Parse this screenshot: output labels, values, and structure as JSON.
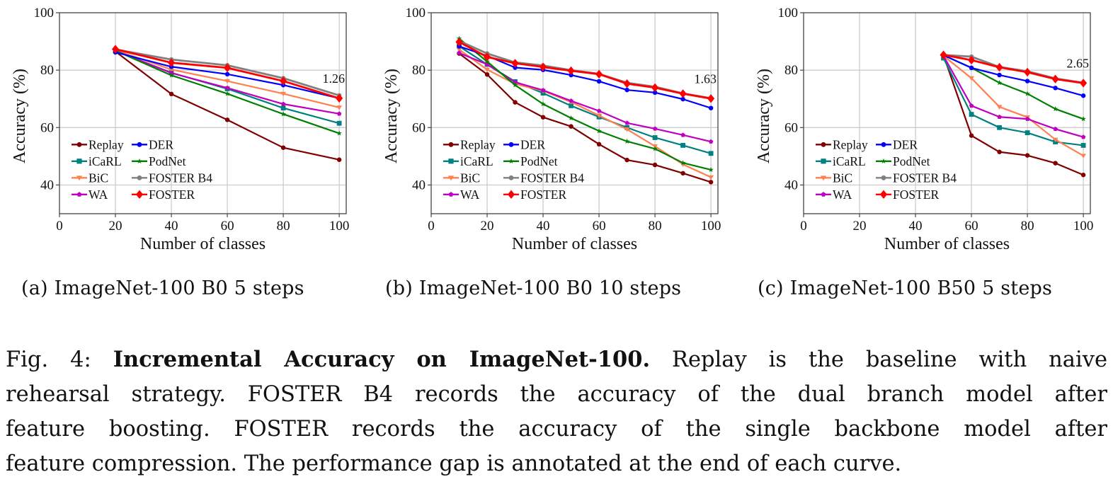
{
  "chart_data": [
    {
      "type": "line",
      "id": "a",
      "subcaption_label": "(a)",
      "subcaption": "ImageNet-100 B0 5 steps",
      "xlabel": "Number of classes",
      "ylabel": "Accuracy (%)",
      "xlim": [
        0,
        102.5
      ],
      "ylim": [
        30,
        100
      ],
      "xticks": [
        "0",
        "20",
        "40",
        "60",
        "80",
        "100"
      ],
      "yticks": [
        "40",
        "60",
        "80",
        "100"
      ],
      "grid": true,
      "legend_position": "lower-left",
      "annotation": "1.26",
      "x": [
        20,
        40,
        60,
        80,
        100
      ],
      "series": [
        {
          "name": "Replay",
          "color": "#800000",
          "marker": "circle",
          "values": [
            86.5,
            71.7,
            62.7,
            53.0,
            48.8
          ]
        },
        {
          "name": "iCaRL",
          "color": "#008080",
          "marker": "square",
          "values": [
            86.7,
            79.1,
            73.5,
            66.8,
            61.5
          ]
        },
        {
          "name": "BiC",
          "color": "#ff7f50",
          "marker": "triangle-down",
          "values": [
            87.0,
            80.2,
            76.2,
            71.8,
            67.0
          ]
        },
        {
          "name": "WA",
          "color": "#c000c0",
          "marker": "pentagon",
          "values": [
            86.8,
            79.0,
            73.8,
            68.2,
            64.8
          ]
        },
        {
          "name": "DER",
          "color": "#0000ff",
          "marker": "circle",
          "values": [
            86.2,
            81.2,
            78.6,
            74.8,
            70.2
          ]
        },
        {
          "name": "PodNet",
          "color": "#008000",
          "marker": "star",
          "values": [
            86.8,
            78.2,
            71.8,
            64.7,
            58.0
          ]
        },
        {
          "name": "FOSTER B4",
          "color": "#808080",
          "marker": "circle",
          "values": [
            87.2,
            83.7,
            81.7,
            77.2,
            71.2
          ]
        },
        {
          "name": "FOSTER",
          "color": "#ff0000",
          "marker": "diamond",
          "values": [
            87.3,
            82.6,
            80.8,
            76.2,
            70.2
          ]
        }
      ]
    },
    {
      "type": "line",
      "id": "b",
      "subcaption_label": "(b)",
      "subcaption": "ImageNet-100 B0 10 steps",
      "xlabel": "Number of classes",
      "ylabel": "Accuracy (%)",
      "xlim": [
        0,
        102.5
      ],
      "ylim": [
        30,
        100
      ],
      "xticks": [
        "0",
        "20",
        "40",
        "60",
        "80",
        "100"
      ],
      "yticks": [
        "40",
        "60",
        "80",
        "100"
      ],
      "grid": true,
      "legend_position": "lower-left",
      "annotation": "1.63",
      "x": [
        10,
        20,
        30,
        40,
        50,
        60,
        70,
        80,
        90,
        100
      ],
      "series": [
        {
          "name": "Replay",
          "color": "#800000",
          "marker": "circle",
          "values": [
            85.8,
            78.5,
            68.8,
            63.6,
            60.4,
            54.2,
            48.7,
            47.0,
            44.1,
            41.0
          ]
        },
        {
          "name": "iCaRL",
          "color": "#008080",
          "marker": "square",
          "values": [
            88.3,
            82.0,
            76.0,
            72.0,
            67.6,
            63.7,
            60.0,
            56.5,
            53.8,
            51.0
          ]
        },
        {
          "name": "BiC",
          "color": "#ff7f50",
          "marker": "triangle-down",
          "values": [
            87.2,
            80.2,
            75.2,
            72.8,
            68.9,
            64.2,
            59.4,
            53.5,
            47.2,
            42.7
          ]
        },
        {
          "name": "WA",
          "color": "#c000c0",
          "marker": "pentagon",
          "values": [
            86.0,
            82.0,
            75.8,
            73.0,
            69.3,
            65.8,
            61.6,
            59.6,
            57.4,
            55.1
          ]
        },
        {
          "name": "DER",
          "color": "#0000ff",
          "marker": "circle",
          "values": [
            88.3,
            85.0,
            80.9,
            80.1,
            78.3,
            76.1,
            73.1,
            72.2,
            69.9,
            66.8
          ]
        },
        {
          "name": "PodNet",
          "color": "#008000",
          "marker": "star",
          "values": [
            91.0,
            83.0,
            74.8,
            68.2,
            63.3,
            58.8,
            55.2,
            52.6,
            47.7,
            45.3
          ]
        },
        {
          "name": "FOSTER B4",
          "color": "#808080",
          "marker": "circle",
          "values": [
            90.2,
            85.8,
            82.7,
            81.6,
            80.0,
            78.7,
            75.6,
            74.2,
            71.9,
            70.2
          ]
        },
        {
          "name": "FOSTER",
          "color": "#ff0000",
          "marker": "diamond",
          "values": [
            89.8,
            84.6,
            82.4,
            81.1,
            79.8,
            78.6,
            75.3,
            73.9,
            71.8,
            70.1
          ]
        }
      ]
    },
    {
      "type": "line",
      "id": "c",
      "subcaption_label": "(c)",
      "subcaption": "ImageNet-100 B50 5 steps",
      "xlabel": "Number of classes",
      "ylabel": "Accuracy (%)",
      "xlim": [
        0,
        102.5
      ],
      "ylim": [
        30,
        100
      ],
      "xticks": [
        "0",
        "20",
        "40",
        "60",
        "80",
        "100"
      ],
      "yticks": [
        "40",
        "60",
        "80",
        "100"
      ],
      "grid": true,
      "legend_position": "lower-left",
      "annotation": "2.65",
      "x": [
        50,
        60,
        70,
        80,
        90,
        100
      ],
      "series": [
        {
          "name": "Replay",
          "color": "#800000",
          "marker": "circle",
          "values": [
            85.2,
            57.2,
            51.5,
            50.3,
            47.6,
            43.5
          ]
        },
        {
          "name": "iCaRL",
          "color": "#008080",
          "marker": "square",
          "values": [
            84.2,
            64.6,
            60.0,
            58.2,
            55.0,
            53.8
          ]
        },
        {
          "name": "BiC",
          "color": "#ff7f50",
          "marker": "triangle-down",
          "values": [
            85.0,
            77.2,
            67.2,
            63.6,
            55.8,
            50.2
          ]
        },
        {
          "name": "WA",
          "color": "#c000c0",
          "marker": "pentagon",
          "values": [
            85.0,
            67.6,
            63.7,
            63.0,
            59.5,
            56.7
          ]
        },
        {
          "name": "DER",
          "color": "#0000ff",
          "marker": "circle",
          "values": [
            85.2,
            80.8,
            78.3,
            76.2,
            73.8,
            71.1
          ]
        },
        {
          "name": "PodNet",
          "color": "#008000",
          "marker": "star",
          "values": [
            85.2,
            80.8,
            75.6,
            71.8,
            66.5,
            63.0
          ]
        },
        {
          "name": "FOSTER B4",
          "color": "#808080",
          "marker": "circle",
          "values": [
            85.3,
            84.7,
            81.1,
            79.6,
            77.1,
            75.6
          ]
        },
        {
          "name": "FOSTER",
          "color": "#ff0000",
          "marker": "diamond",
          "values": [
            85.3,
            83.5,
            81.0,
            79.3,
            76.9,
            75.5
          ]
        }
      ]
    }
  ],
  "caption": {
    "fig_label": "Fig. 4:",
    "bold_title": "Incremental Accuracy on ImageNet-100.",
    "line1_rest": "Replay is the baseline with naive",
    "line2": "rehearsal strategy. FOSTER B4 records the accuracy of the dual branch model after",
    "line3": "feature boosting. FOSTER records the accuracy of the single backbone model after",
    "line4": "feature compression. The performance gap is annotated at the end of each curve."
  }
}
